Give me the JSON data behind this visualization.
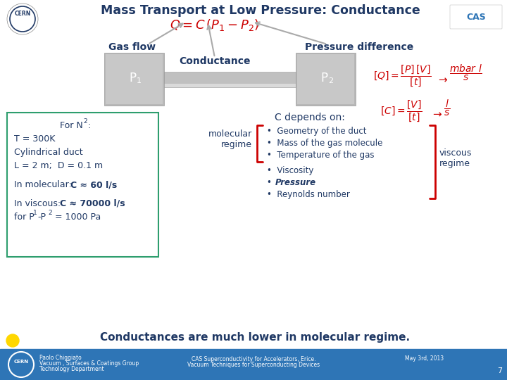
{
  "title": "Mass Transport at Low Pressure: Conductance",
  "title_color": "#1F3864",
  "bg_color": "#FFFFFF",
  "footer_bg_color": "#2E75B6",
  "red_color": "#CC0000",
  "dark_blue": "#1F3864",
  "medium_blue": "#2E75B6",
  "label_gas_flow": "Gas flow",
  "label_conductance": "Conductance",
  "label_pressure_diff": "Pressure difference",
  "p1_label": "P",
  "p2_label": "P",
  "left_box_lines": [
    {
      "text": "For N",
      "sub": "2",
      "rest": ":",
      "bold": false
    },
    {
      "text": "T = 300K",
      "sub": "",
      "rest": "",
      "bold": false
    },
    {
      "text": "Cylindrical duct",
      "sub": "",
      "rest": "",
      "bold": false
    },
    {
      "text": "L = 2 m;  D = 0.1 m",
      "sub": "",
      "rest": "",
      "bold": false
    },
    {
      "text": "",
      "sub": "",
      "rest": "",
      "bold": false
    },
    {
      "text": "In molecular: ",
      "sub": "",
      "rest": "C ≈ 60 l/s",
      "bold": true
    },
    {
      "text": "",
      "sub": "",
      "rest": "",
      "bold": false
    },
    {
      "text": "In viscous: ",
      "sub": "",
      "rest": "C ≈ 70000 l/s",
      "bold": true
    },
    {
      "text": "for P",
      "sub1": "1",
      "dash": "-P",
      "sub2": "2",
      "rest": " = 1000 Pa",
      "bold": false
    }
  ],
  "c_depends_title": "C depends on:",
  "molecular_label": "molecular\nregime",
  "molecular_bullets": [
    "Geometry of the duct",
    "Mass of the gas molecule",
    "Temperature of the gas"
  ],
  "viscous_label": "viscous\nregime",
  "viscous_bullets": [
    "Viscosity",
    "Pressure",
    "Reynolds number"
  ],
  "bottom_text": "Conductances are much lower in molecular regime.",
  "footer_left1": "Paolo Chiggiato",
  "footer_left2": "Vacuum , Surfaces & Coatings Group",
  "footer_left3": "Technology Department",
  "footer_center1": "CAS Superconductivity for Accelerators, Erice.",
  "footer_center2": "Vacuum Techniques for Superconducting Devices",
  "footer_right": "May 3rd, 2013",
  "page_num": "7"
}
